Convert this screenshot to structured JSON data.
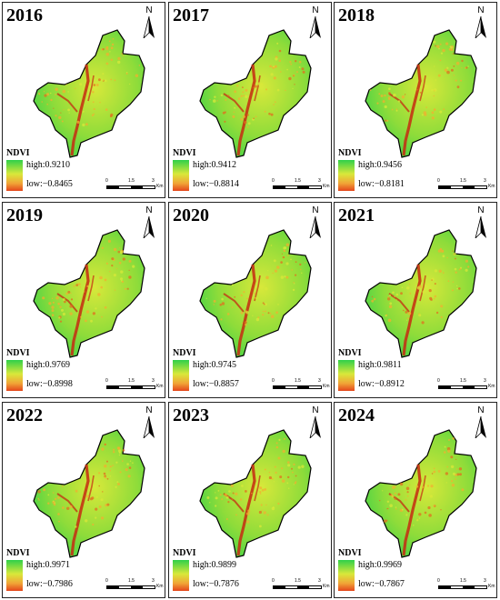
{
  "legend_title": "NDVI",
  "north_label": "N",
  "scale": {
    "ticks": [
      "0",
      "1.5",
      "3"
    ],
    "unit": "Km"
  },
  "colors": {
    "high": "#2fd04a",
    "mid": "#d8e83a",
    "low": "#e4451b",
    "river": "#c62a12"
  },
  "panels": [
    {
      "year": "2016",
      "high": "high:0.9210",
      "low": "low:−0.8465"
    },
    {
      "year": "2017",
      "high": "high:0.9412",
      "low": "low:−0.8814"
    },
    {
      "year": "2018",
      "high": "high:0.9456",
      "low": "low:−0.8181"
    },
    {
      "year": "2019",
      "high": "high:0.9769",
      "low": "low:−0.8998"
    },
    {
      "year": "2020",
      "high": "high:0.9745",
      "low": "low:−0.8857"
    },
    {
      "year": "2021",
      "high": "high:0.9811",
      "low": "low:−0.8912"
    },
    {
      "year": "2022",
      "high": "high:0.9971",
      "low": "low:−0.7986"
    },
    {
      "year": "2023",
      "high": "high:0.9899",
      "low": "low:−0.7876"
    },
    {
      "year": "2024",
      "high": "high:0.9969",
      "low": "low:−0.7867"
    }
  ]
}
